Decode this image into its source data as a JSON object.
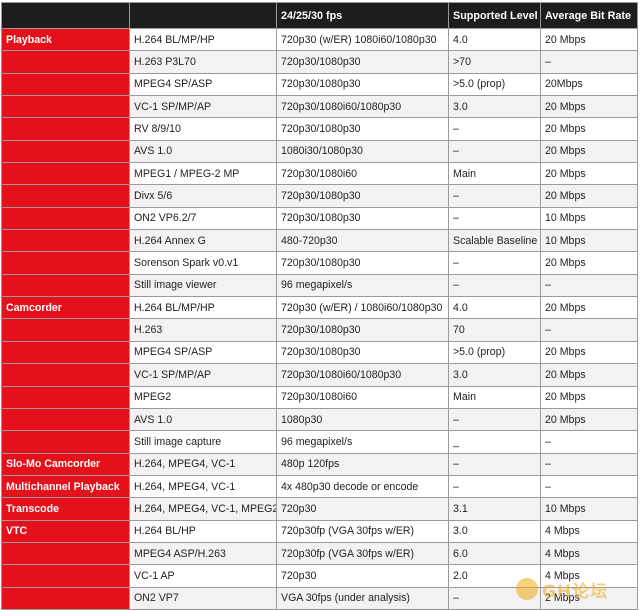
{
  "table": {
    "headers": [
      "",
      "",
      "24/25/30 fps",
      "Supported Level",
      "Average Bit Rate"
    ],
    "rows": [
      {
        "category": "Playback",
        "codec": "H.264 BL/MP/HP",
        "res": "720p30 (w/ER) 1080i60/1080p30",
        "level": "4.0",
        "bitrate": "20 Mbps"
      },
      {
        "category": "",
        "codec": "H.263 P3L70",
        "res": "720p30/1080p30",
        "level": ">70",
        "bitrate": "–"
      },
      {
        "category": "",
        "codec": "MPEG4 SP/ASP",
        "res": "720p30/1080p30",
        "level": ">5.0 (prop)",
        "bitrate": "20Mbps"
      },
      {
        "category": "",
        "codec": "VC-1 SP/MP/AP",
        "res": "720p30/1080i60/1080p30",
        "level": "3.0",
        "bitrate": "20 Mbps"
      },
      {
        "category": "",
        "codec": "RV 8/9/10",
        "res": "720p30/1080p30",
        "level": "–",
        "bitrate": "20 Mbps"
      },
      {
        "category": "",
        "codec": "AVS 1.0",
        "res": "1080i30/1080p30",
        "level": "–",
        "bitrate": "20 Mbps"
      },
      {
        "category": "",
        "codec": "MPEG1 / MPEG-2 MP",
        "res": "720p30/1080i60",
        "level": "Main",
        "bitrate": "20 Mbps"
      },
      {
        "category": "",
        "codec": "Divx 5/6",
        "res": "720p30/1080p30",
        "level": "–",
        "bitrate": "20 Mbps"
      },
      {
        "category": "",
        "codec": "ON2 VP6.2/7",
        "res": "720p30/1080p30",
        "level": "–",
        "bitrate": "10 Mbps"
      },
      {
        "category": "",
        "codec": "H.264 Annex G",
        "res": "480-720p30",
        "level": "Scalable Baseline",
        "bitrate": "10 Mbps"
      },
      {
        "category": "",
        "codec": "Sorenson Spark v0.v1",
        "res": "720p30/1080p30",
        "level": "–",
        "bitrate": "20 Mbps"
      },
      {
        "category": "",
        "codec": "Still image viewer",
        "res": "96 megapixel/s",
        "level": "–",
        "bitrate": "–"
      },
      {
        "category": "Camcorder",
        "codec": "H.264 BL/MP/HP",
        "res": "720p30 (w/ER) / 1080i60/1080p30",
        "level": "4.0",
        "bitrate": "20 Mbps"
      },
      {
        "category": "",
        "codec": "H.263",
        "res": "720p30/1080p30",
        "level": "70",
        "bitrate": "–"
      },
      {
        "category": "",
        "codec": "MPEG4 SP/ASP",
        "res": "720p30/1080p30",
        "level": ">5.0 (prop)",
        "bitrate": "20 Mbps"
      },
      {
        "category": "",
        "codec": "VC-1 SP/MP/AP",
        "res": "720p30/1080i60/1080p30",
        "level": "3.0",
        "bitrate": "20 Mbps"
      },
      {
        "category": "",
        "codec": "MPEG2",
        "res": "720p30/1080i60",
        "level": "Main",
        "bitrate": "20 Mbps"
      },
      {
        "category": "",
        "codec": "AVS 1.0",
        "res": "1080p30",
        "level": "–",
        "bitrate": "20 Mbps"
      },
      {
        "category": "",
        "codec": "Still image capture",
        "res": "96 megapixel/s",
        "level": "_",
        "bitrate": "–"
      },
      {
        "category": "Slo-Mo Camcorder",
        "codec": "H.264, MPEG4, VC-1",
        "res": "480p 120fps",
        "level": "–",
        "bitrate": "–"
      },
      {
        "category": "Multichannel Playback",
        "codec": "H.264, MPEG4, VC-1",
        "res": "4x 480p30 decode or encode",
        "level": "–",
        "bitrate": "–"
      },
      {
        "category": "Transcode",
        "codec": "H.264, MPEG4, VC-1, MPEG2",
        "res": "720p30",
        "level": "3.1",
        "bitrate": "10 Mbps"
      },
      {
        "category": "VTC",
        "codec": "H.264 BL/HP",
        "res": "720p30fp (VGA 30fps w/ER)",
        "level": "3.0",
        "bitrate": "4 Mbps"
      },
      {
        "category": "",
        "codec": "MPEG4 ASP/H.263",
        "res": "720p30fp (VGA 30fps w/ER)",
        "level": "6.0",
        "bitrate": "4 Mbps"
      },
      {
        "category": "",
        "codec": "VC-1 AP",
        "res": "720p30",
        "level": "2.0",
        "bitrate": "4 Mbps"
      },
      {
        "category": "",
        "codec": "ON2 VP7",
        "res": "VGA 30fps (under analysis)",
        "level": "–",
        "bitrate": "2 Mbps"
      }
    ]
  },
  "watermark": {
    "text": "GH论坛"
  },
  "colors": {
    "header_bg": "#1d1d1d",
    "category_bg": "#e5111a",
    "stripe": "#f2f2f2"
  }
}
